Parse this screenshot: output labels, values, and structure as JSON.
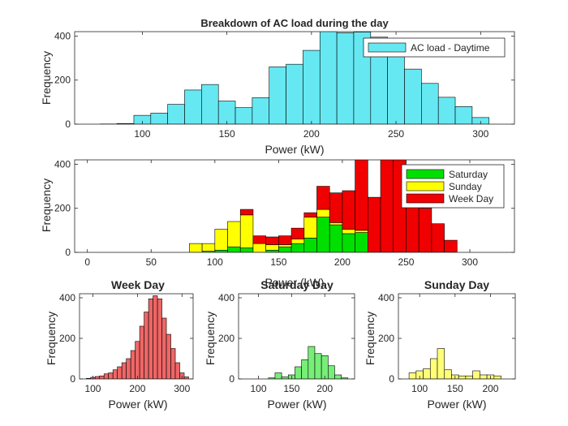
{
  "chart_data": [
    {
      "id": "top",
      "type": "bar",
      "title": "Breakdown of AC load during the day",
      "xlabel": "Power (kW)",
      "ylabel": "Frequency",
      "xlim": [
        60,
        320
      ],
      "ylim": [
        0,
        420
      ],
      "xticks": [
        100,
        150,
        200,
        250,
        300
      ],
      "yticks": [
        0,
        200,
        400
      ],
      "bin_edges": [
        75,
        85,
        95,
        105,
        115,
        125,
        135,
        145,
        155,
        165,
        175,
        185,
        195,
        205,
        215,
        225,
        235,
        245,
        255,
        265,
        275,
        285,
        295,
        305
      ],
      "series": [
        {
          "name": "AC load - Daytime",
          "color": "#66e8f2",
          "values": [
            1,
            3,
            40,
            50,
            90,
            155,
            180,
            105,
            75,
            120,
            260,
            272,
            335,
            430,
            415,
            418,
            395,
            310,
            250,
            185,
            122,
            80,
            30
          ]
        }
      ],
      "legend": {
        "position": "top-right"
      },
      "grid": false
    },
    {
      "id": "middle",
      "type": "bar",
      "stacked": true,
      "title": "",
      "xlabel": "Power (kW)",
      "ylabel": "Frequency",
      "xlim": [
        -10,
        335
      ],
      "ylim": [
        0,
        420
      ],
      "xticks": [
        0,
        50,
        100,
        150,
        200,
        250,
        300
      ],
      "yticks": [
        0,
        200,
        400
      ],
      "bin_edges": [
        80,
        90,
        100,
        110,
        120,
        130,
        140,
        150,
        160,
        170,
        180,
        190,
        200,
        210,
        220,
        230,
        240,
        250,
        260,
        270,
        280,
        290
      ],
      "series": [
        {
          "name": "Saturday",
          "color": "#00e000",
          "values": [
            0,
            5,
            10,
            25,
            20,
            0,
            10,
            25,
            40,
            65,
            160,
            125,
            85,
            90,
            0,
            0,
            0,
            0,
            0,
            0,
            0
          ]
        },
        {
          "name": "Sunday",
          "color": "#ffff00",
          "values": [
            40,
            35,
            95,
            115,
            150,
            40,
            25,
            10,
            20,
            95,
            35,
            10,
            20,
            10,
            0,
            0,
            0,
            0,
            0,
            0,
            0
          ]
        },
        {
          "name": "Week Day",
          "color": "#f00000",
          "values": [
            0,
            0,
            0,
            0,
            25,
            35,
            35,
            40,
            50,
            20,
            105,
            135,
            175,
            335,
            250,
            480,
            435,
            340,
            200,
            130,
            55,
            20
          ]
        }
      ],
      "legend": {
        "position": "top-right"
      },
      "grid": false
    },
    {
      "id": "weekday",
      "type": "bar",
      "title": "Week Day",
      "xlabel": "Power (kW)",
      "ylabel": "Frequency",
      "xlim": [
        70,
        325
      ],
      "ylim": [
        0,
        420
      ],
      "xticks": [
        100,
        200,
        300
      ],
      "yticks": [
        0,
        200,
        400
      ],
      "bin_edges": [
        85,
        95,
        105,
        115,
        125,
        135,
        145,
        155,
        165,
        175,
        185,
        195,
        205,
        215,
        225,
        235,
        245,
        255,
        265,
        275,
        285,
        295,
        305,
        315
      ],
      "series": [
        {
          "name": "Week Day",
          "color": "#ee6666",
          "values": [
            3,
            8,
            12,
            15,
            25,
            30,
            45,
            60,
            80,
            100,
            140,
            185,
            260,
            330,
            395,
            410,
            395,
            300,
            220,
            150,
            80,
            30,
            10
          ]
        }
      ],
      "grid": false
    },
    {
      "id": "saturday",
      "type": "bar",
      "title": "Saturday Day",
      "xlabel": "Power (kW)",
      "ylabel": "Frequency",
      "xlim": [
        70,
        245
      ],
      "ylim": [
        0,
        420
      ],
      "xticks": [
        100,
        150,
        200
      ],
      "yticks": [
        0,
        200,
        400
      ],
      "bin_edges": [
        85,
        95,
        105,
        115,
        125,
        135,
        145,
        155,
        165,
        175,
        185,
        195,
        205,
        215,
        225,
        235
      ],
      "series": [
        {
          "name": "Saturday Day",
          "color": "#77ee77",
          "values": [
            0,
            0,
            0,
            5,
            30,
            10,
            20,
            60,
            95,
            160,
            125,
            115,
            65,
            20,
            5
          ]
        }
      ],
      "grid": false
    },
    {
      "id": "sunday",
      "type": "bar",
      "title": "Sunday Day",
      "xlabel": "Power (kW)",
      "ylabel": "Frequency",
      "xlim": [
        70,
        235
      ],
      "ylim": [
        0,
        420
      ],
      "xticks": [
        100,
        150,
        200
      ],
      "yticks": [
        0,
        200,
        400
      ],
      "bin_edges": [
        85,
        95,
        105,
        115,
        125,
        135,
        145,
        155,
        165,
        175,
        185,
        195,
        205,
        215
      ],
      "series": [
        {
          "name": "Sunday Day",
          "color": "#ffff77",
          "values": [
            30,
            40,
            50,
            100,
            150,
            45,
            20,
            15,
            15,
            40,
            20,
            20,
            15
          ]
        }
      ],
      "grid": false
    }
  ]
}
